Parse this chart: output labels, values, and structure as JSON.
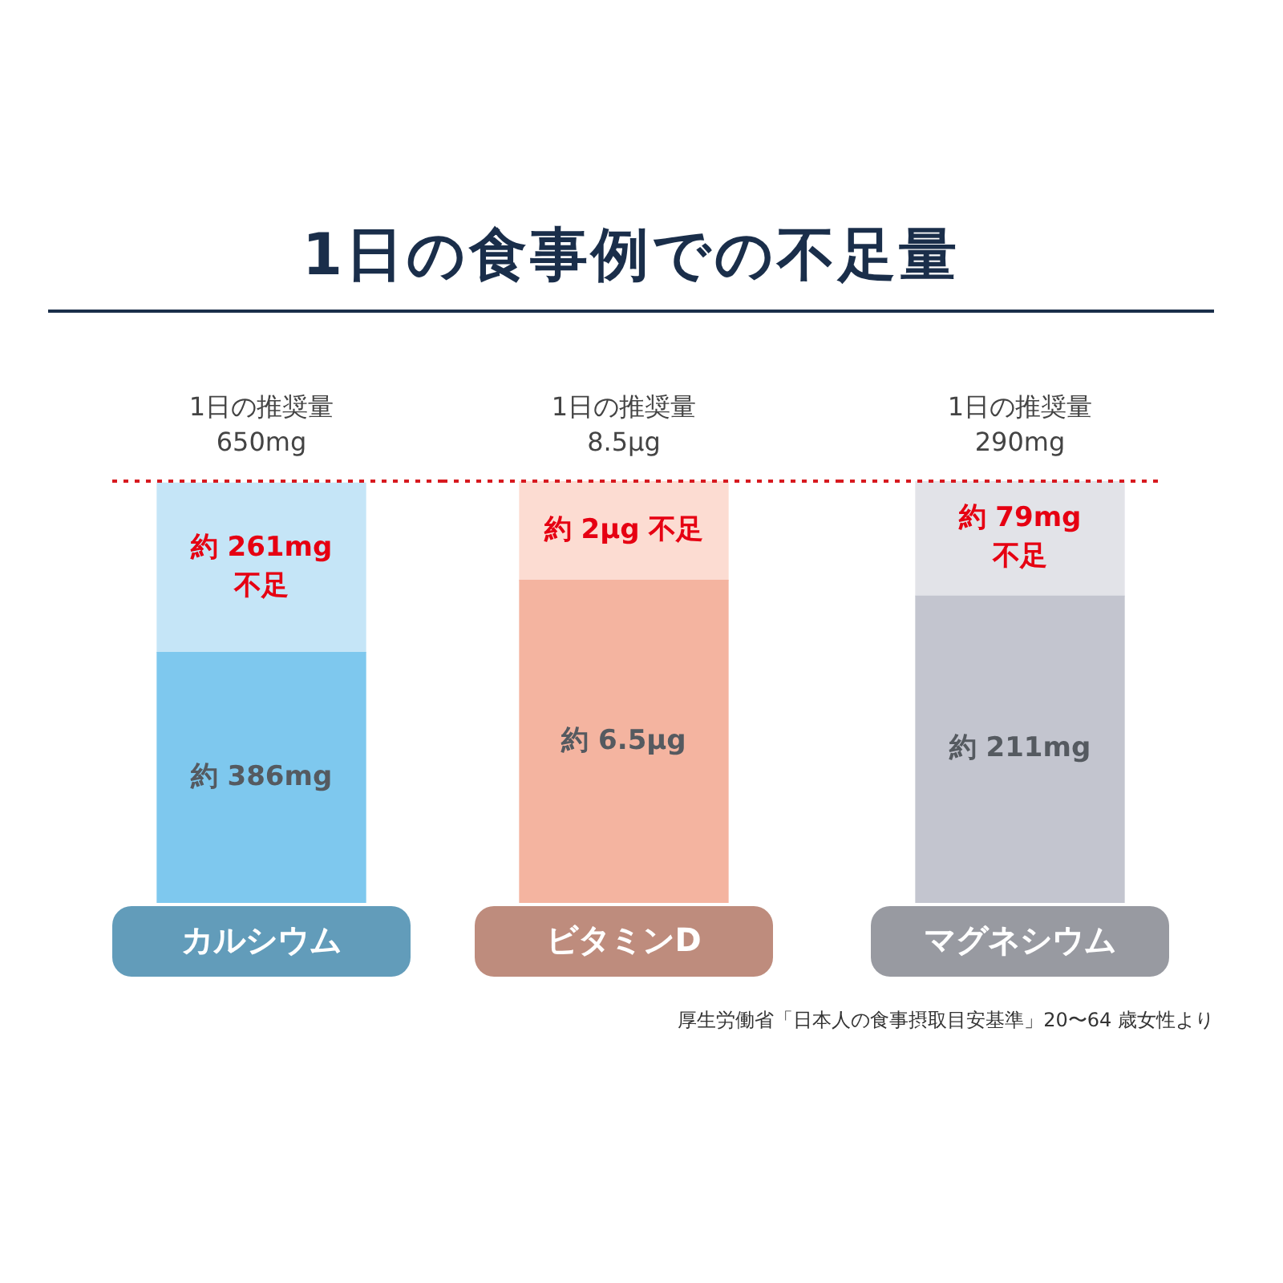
{
  "chart_data": [
    {
      "type": "bar",
      "title": "1日の食事例での不足量",
      "stacked": true,
      "tick_labels": false,
      "categories": [
        "カルシウム"
      ],
      "ylim": [
        0,
        650
      ],
      "series": [
        {
          "color": "#7ec8ee",
          "values": [
            386
          ],
          "value_labels": [
            "約 386mg"
          ]
        },
        {
          "color": "#c5e5f7",
          "values": [
            261
          ],
          "value_labels": [
            "約 261mg\n不足"
          ]
        }
      ],
      "ref_lines": [
        {
          "axis": "y",
          "value": 650,
          "label": "1日の推奨量\n650mg",
          "color": "#d7191f",
          "line_style": "dotted"
        }
      ]
    },
    {
      "type": "bar",
      "stacked": true,
      "tick_labels": false,
      "categories": [
        "ビタミンD"
      ],
      "ylim": [
        0,
        8.5
      ],
      "series": [
        {
          "color": "#f4b4a0",
          "values": [
            6.5
          ],
          "value_labels": [
            "約 6.5μg"
          ]
        },
        {
          "color": "#fcdcd2",
          "values": [
            2
          ],
          "value_labels": [
            "約 2μg 不足"
          ]
        }
      ],
      "ref_lines": [
        {
          "axis": "y",
          "value": 8.5,
          "label": "1日の推奨量\n8.5μg",
          "color": "#d7191f",
          "line_style": "dotted"
        }
      ]
    },
    {
      "type": "bar",
      "stacked": true,
      "tick_labels": false,
      "categories": [
        "マグネシウム"
      ],
      "ylim": [
        0,
        290
      ],
      "series": [
        {
          "color": "#c3c5cf",
          "values": [
            211
          ],
          "value_labels": [
            "約 211mg"
          ]
        },
        {
          "color": "#e2e3e8",
          "values": [
            79
          ],
          "value_labels": [
            "約 79mg\n不足"
          ]
        }
      ],
      "ref_lines": [
        {
          "axis": "y",
          "value": 290,
          "label": "1日の推奨量\n290mg",
          "color": "#d7191f",
          "line_style": "dotted"
        }
      ],
      "annotations": [
        "厚生労働省「日本人の食事摂取目安基準」20〜64 歳女性より"
      ]
    }
  ]
}
